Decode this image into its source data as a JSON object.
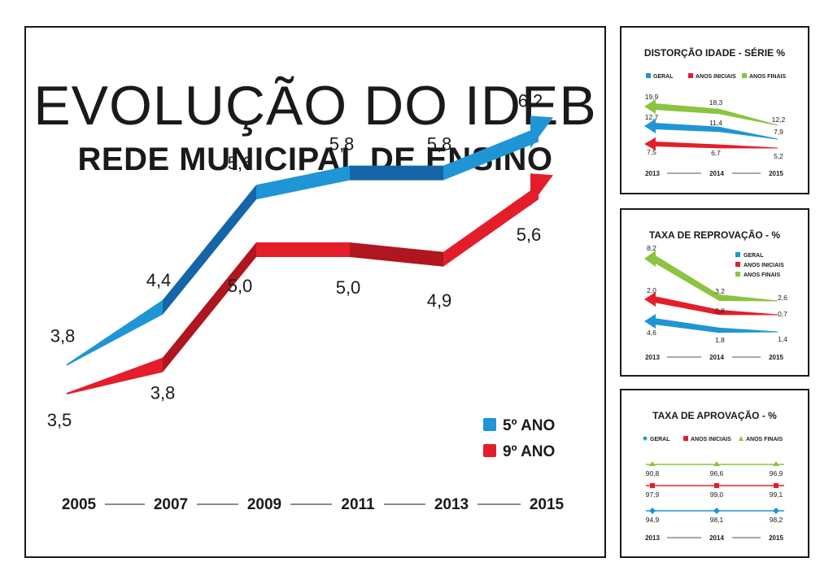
{
  "colors": {
    "blue": "#1f95d6",
    "blue_dark": "#1565a8",
    "red": "#e31e2a",
    "red_dark": "#b0161f",
    "green": "#8bc43f",
    "text": "#1a1a1a"
  },
  "chart_data": [
    {
      "type": "line",
      "title": "EVOLUÇÃO DO IDEB",
      "subtitle": "REDE MUNICIPAL DE ENSINO",
      "categories": [
        "2005",
        "2007",
        "2009",
        "2011",
        "2013",
        "2015"
      ],
      "series": [
        {
          "name": "5º ANO",
          "color": "#1f95d6",
          "labels": [
            "3,8",
            "4,4",
            "5,6",
            "5,8",
            "5,8",
            "6,2"
          ],
          "values": [
            3.8,
            4.4,
            5.6,
            5.8,
            5.8,
            6.2
          ]
        },
        {
          "name": "9º ANO",
          "color": "#e31e2a",
          "labels": [
            "3,5",
            "3,8",
            "5,0",
            "5,0",
            "4,9",
            "5,6"
          ],
          "values": [
            3.5,
            3.8,
            5.0,
            5.0,
            4.9,
            5.6
          ]
        }
      ],
      "legend": [
        "5º ANO",
        "9º ANO"
      ]
    },
    {
      "type": "line",
      "title": "DISTORÇÃO IDADE - SÉRIE %",
      "categories": [
        "2013",
        "2014",
        "2015"
      ],
      "legend": [
        "GERAL",
        "ANOS INICIAIS",
        "ANOS FINAIS"
      ],
      "series": [
        {
          "name": "ANOS FINAIS",
          "color": "#8bc43f",
          "labels": [
            "19,9",
            "18,3",
            "12,2"
          ],
          "values": [
            19.9,
            18.3,
            12.2
          ]
        },
        {
          "name": "GERAL",
          "color": "#1f95d6",
          "labels": [
            "12,7",
            "11,4",
            "7,9"
          ],
          "values": [
            12.7,
            11.4,
            7.9
          ]
        },
        {
          "name": "ANOS INICIAIS",
          "color": "#e31e2a",
          "labels": [
            "7,5",
            "6,7",
            "5,2"
          ],
          "values": [
            7.5,
            6.7,
            5.2
          ]
        }
      ]
    },
    {
      "type": "line",
      "title": "TAXA DE REPROVAÇÃO - %",
      "categories": [
        "2013",
        "2014",
        "2015"
      ],
      "legend": [
        "GERAL",
        "ANOS INICIAIS",
        "ANOS FINAIS"
      ],
      "series": [
        {
          "name": "ANOS FINAIS",
          "color": "#8bc43f",
          "labels": [
            "8,2",
            "3,2",
            "2,6"
          ],
          "values": [
            8.2,
            3.2,
            2.6
          ]
        },
        {
          "name": "ANOS INICIAIS",
          "color": "#e31e2a",
          "labels": [
            "2,0",
            "0,8",
            "0,7"
          ],
          "values": [
            2.0,
            0.8,
            0.7
          ]
        },
        {
          "name": "GERAL",
          "color": "#1f95d6",
          "labels": [
            "4,6",
            "1,8",
            "1,4"
          ],
          "values": [
            4.6,
            1.8,
            1.4
          ]
        }
      ]
    },
    {
      "type": "line",
      "title": "TAXA DE APROVAÇÃO - %",
      "categories": [
        "2013",
        "2014",
        "2015"
      ],
      "legend": [
        "GERAL",
        "ANOS INICIAIS",
        "ANOS FINAIS"
      ],
      "series": [
        {
          "name": "ANOS FINAIS",
          "color": "#8bc43f",
          "labels": [
            "90,8",
            "96,6",
            "96,9"
          ],
          "values": [
            90.8,
            96.6,
            96.9
          ]
        },
        {
          "name": "ANOS INICIAIS",
          "color": "#e31e2a",
          "labels": [
            "97,9",
            "99,0",
            "99,1"
          ],
          "values": [
            97.9,
            99.0,
            99.1
          ]
        },
        {
          "name": "GERAL",
          "color": "#1f95d6",
          "labels": [
            "94,9",
            "98,1",
            "98,2"
          ],
          "values": [
            94.9,
            98.1,
            98.2
          ]
        }
      ]
    }
  ]
}
